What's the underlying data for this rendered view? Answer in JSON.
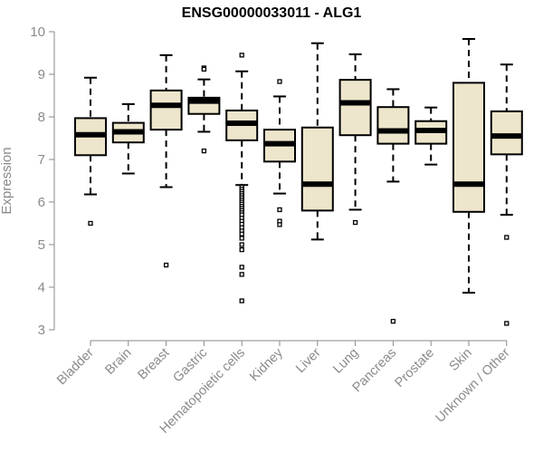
{
  "chart_data": {
    "type": "boxplot",
    "title": "ENSG00000033011 - ALG1",
    "xlabel": "",
    "ylabel": "Expression",
    "ylim": [
      3,
      10
    ],
    "yticks": [
      3,
      4,
      5,
      6,
      7,
      8,
      9,
      10
    ],
    "categories": [
      "Bladder",
      "Brain",
      "Breast",
      "Gastric",
      "Hematopoietic cells",
      "Kidney",
      "Liver",
      "Lung",
      "Pancreas",
      "Prostate",
      "Skin",
      "Unknown / Other"
    ],
    "box_color": "#ede6cc",
    "boxes": [
      {
        "whisker_low": 6.18,
        "q1": 7.1,
        "median": 7.58,
        "q3": 7.97,
        "whisker_high": 8.92,
        "outliers": [
          5.5
        ]
      },
      {
        "whisker_low": 6.67,
        "q1": 7.4,
        "median": 7.65,
        "q3": 7.86,
        "whisker_high": 8.3,
        "outliers": []
      },
      {
        "whisker_low": 6.35,
        "q1": 7.7,
        "median": 8.27,
        "q3": 8.62,
        "whisker_high": 9.45,
        "outliers": [
          4.52
        ]
      },
      {
        "whisker_low": 7.65,
        "q1": 8.07,
        "median": 8.37,
        "q3": 8.45,
        "whisker_high": 8.88,
        "outliers": [
          9.15,
          9.12,
          7.2
        ]
      },
      {
        "whisker_low": 6.4,
        "q1": 7.45,
        "median": 7.85,
        "q3": 8.15,
        "whisker_high": 9.07,
        "outliers": [
          9.45,
          6.35,
          6.3,
          6.25,
          6.2,
          6.15,
          6.1,
          6.05,
          6.0,
          5.95,
          5.9,
          5.85,
          5.8,
          5.75,
          5.7,
          5.62,
          5.55,
          5.48,
          5.4,
          5.32,
          5.25,
          5.15,
          5.0,
          4.88,
          4.47,
          4.3,
          3.68
        ]
      },
      {
        "whisker_low": 6.2,
        "q1": 6.95,
        "median": 7.37,
        "q3": 7.7,
        "whisker_high": 8.48,
        "outliers": [
          8.83,
          5.82,
          5.55,
          5.47
        ]
      },
      {
        "whisker_low": 5.12,
        "q1": 5.8,
        "median": 6.42,
        "q3": 7.75,
        "whisker_high": 9.73,
        "outliers": []
      },
      {
        "whisker_low": 5.82,
        "q1": 7.57,
        "median": 8.33,
        "q3": 8.87,
        "whisker_high": 9.47,
        "outliers": [
          5.52
        ]
      },
      {
        "whisker_low": 6.48,
        "q1": 7.37,
        "median": 7.67,
        "q3": 8.23,
        "whisker_high": 8.65,
        "outliers": [
          3.2
        ]
      },
      {
        "whisker_low": 6.88,
        "q1": 7.37,
        "median": 7.68,
        "q3": 7.9,
        "whisker_high": 8.22,
        "outliers": []
      },
      {
        "whisker_low": 3.87,
        "q1": 5.77,
        "median": 6.42,
        "q3": 8.8,
        "whisker_high": 9.83,
        "outliers": []
      },
      {
        "whisker_low": 5.7,
        "q1": 7.12,
        "median": 7.55,
        "q3": 8.13,
        "whisker_high": 9.23,
        "outliers": [
          5.17,
          3.15
        ]
      }
    ]
  }
}
